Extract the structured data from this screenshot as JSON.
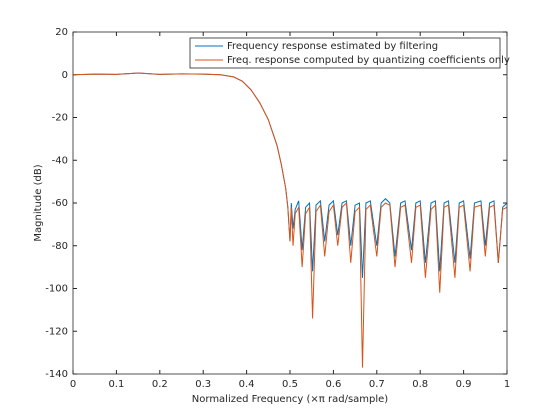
{
  "chart_data": {
    "type": "line",
    "xlabel": "Normalized Frequency (×π rad/sample)",
    "ylabel": "Magnitude (dB)",
    "x": [
      0,
      0.05,
      0.1,
      0.15,
      0.2,
      0.25,
      0.3,
      0.34,
      0.37,
      0.39,
      0.41,
      0.43,
      0.45,
      0.47,
      0.48,
      0.49,
      0.495,
      0.5,
      0.503,
      0.507,
      0.512,
      0.52,
      0.528,
      0.536,
      0.545,
      0.552,
      0.56,
      0.57,
      0.58,
      0.59,
      0.6,
      0.61,
      0.62,
      0.63,
      0.64,
      0.65,
      0.66,
      0.667,
      0.675,
      0.685,
      0.7,
      0.71,
      0.72,
      0.73,
      0.742,
      0.755,
      0.765,
      0.78,
      0.79,
      0.8,
      0.812,
      0.825,
      0.835,
      0.845,
      0.855,
      0.865,
      0.88,
      0.89,
      0.9,
      0.915,
      0.925,
      0.94,
      0.95,
      0.96,
      0.97,
      0.98,
      0.99,
      1
    ],
    "series": [
      {
        "name": "Frequency response estimated by filtering",
        "color": "#0072bd",
        "values": [
          0,
          0.3,
          0.2,
          0.8,
          0.2,
          0.4,
          0.3,
          0,
          -1,
          -3,
          -7,
          -13,
          -21,
          -33,
          -42,
          -53,
          -62,
          -78,
          -60,
          -72,
          -63,
          -59,
          -82,
          -62,
          -60,
          -92,
          -61,
          -59,
          -78,
          -61,
          -59,
          -75,
          -60,
          -59,
          -80,
          -61,
          -60,
          -95,
          -60,
          -59,
          -80,
          -60,
          -58,
          -60,
          -85,
          -60,
          -59,
          -82,
          -60,
          -59,
          -88,
          -60,
          -59,
          -92,
          -60,
          -59,
          -88,
          -60,
          -59,
          -86,
          -60,
          -59,
          -80,
          -60,
          -59,
          -88,
          -62,
          -60
        ]
      },
      {
        "name": "Freq. response computed by quantizing coefficients only",
        "color": "#d95319",
        "values": [
          0,
          0.3,
          0.2,
          0.8,
          0.2,
          0.4,
          0.3,
          0,
          -1,
          -3,
          -7,
          -13,
          -21,
          -33,
          -42,
          -53,
          -62,
          -78,
          -62,
          -80,
          -65,
          -62,
          -90,
          -65,
          -62,
          -114,
          -64,
          -61,
          -85,
          -64,
          -61,
          -80,
          -62,
          -60,
          -88,
          -64,
          -62,
          -137,
          -63,
          -61,
          -85,
          -62,
          -60,
          -61,
          -90,
          -62,
          -61,
          -88,
          -62,
          -61,
          -95,
          -63,
          -61,
          -102,
          -62,
          -61,
          -95,
          -62,
          -61,
          -92,
          -62,
          -61,
          -85,
          -62,
          -61,
          -88,
          -63,
          -62
        ]
      }
    ],
    "xlim": [
      0,
      1
    ],
    "xticks": [
      0,
      0.1,
      0.2,
      0.3,
      0.4,
      0.5,
      0.6,
      0.7,
      0.8,
      0.9,
      1
    ],
    "ylim": [
      -140,
      20
    ],
    "yticks": [
      -140,
      -120,
      -100,
      -80,
      -60,
      -40,
      -20,
      0,
      20
    ],
    "legend": "northeast"
  }
}
